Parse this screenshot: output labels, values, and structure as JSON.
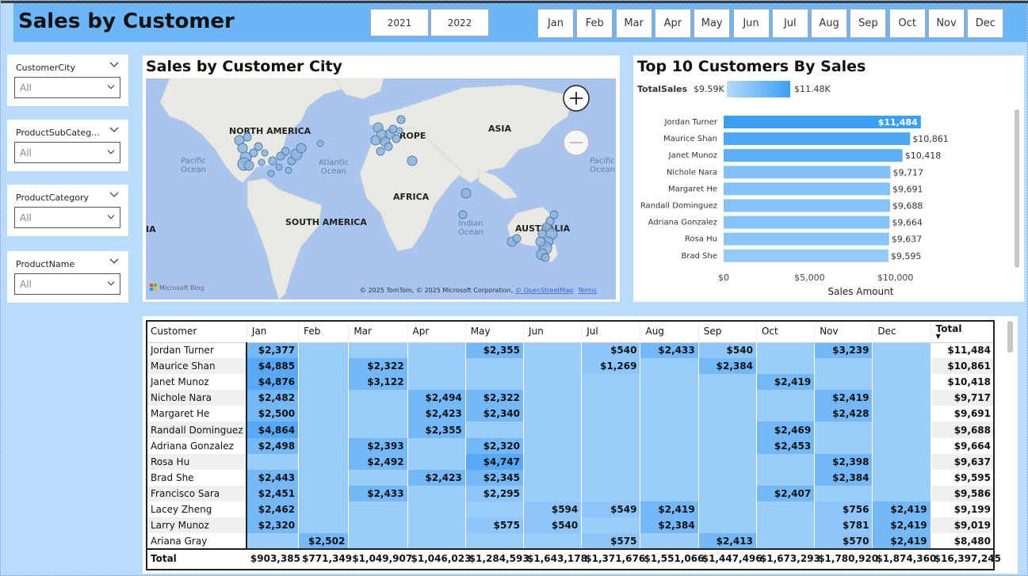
{
  "header": {
    "title": "Sales by Customer",
    "years": [
      "2021",
      "2022"
    ],
    "months": [
      "Jan",
      "Feb",
      "Mar",
      "Apr",
      "May",
      "Jun",
      "Jul",
      "Aug",
      "Sep",
      "Oct",
      "Nov",
      "Dec"
    ]
  },
  "slicers": [
    {
      "label": "CustomerCity",
      "value": "All"
    },
    {
      "label": "ProductSubCateg...",
      "value": "All"
    },
    {
      "label": "ProductCategory",
      "value": "All"
    },
    {
      "label": "ProductName",
      "value": "All"
    }
  ],
  "map": {
    "title": "Sales by Customer City",
    "labels": {
      "na": "NORTH AMERICA",
      "europe": "ROPE",
      "asia": "ASIA",
      "africa": "AFRICA",
      "sa": "SOUTH AMERICA",
      "australia": "AUSTRALIA",
      "pacific_left": "Pacific\nOcean",
      "pacific_right": "Pacific\nOcean",
      "atlantic": "Atlantic\nOcean",
      "indian": "Indian\nOcean",
      "ia": "IA"
    },
    "attribution": "© 2025 TomTom, © 2025 Microsoft Corporation,",
    "osm": "© OpenStreetMap",
    "terms": "Terms",
    "logo": "Microsoft Bing"
  },
  "bar": {
    "title": "Top 10 Customers By Sales",
    "legend_label": "TotalSales",
    "legend_min": "$9.59K",
    "legend_max": "$11.48K",
    "xlabel": "Sales Amount",
    "ticks": [
      "$0",
      "$5,000",
      "$10,000"
    ]
  },
  "chart_data": {
    "type": "bar",
    "title": "Top 10 Customers By Sales",
    "xlabel": "Sales Amount",
    "xlim": [
      0,
      12000
    ],
    "categories": [
      "Jordan Turner",
      "Maurice Shan",
      "Janet Munoz",
      "Nichole Nara",
      "Margaret He",
      "Randall Dominguez",
      "Adriana Gonzalez",
      "Rosa Hu",
      "Brad She"
    ],
    "values": [
      11484,
      10861,
      10418,
      9717,
      9691,
      9688,
      9664,
      9637,
      9595
    ],
    "labels": [
      "$11,484",
      "$10,861",
      "$10,418",
      "$9,717",
      "$9,691",
      "$9,688",
      "$9,664",
      "$9,637",
      "$9,595"
    ],
    "colors": {
      "high": "#3aa0f5",
      "low": "#93c9fb"
    }
  },
  "table": {
    "headers": [
      "Customer",
      "Jan",
      "Feb",
      "Mar",
      "Apr",
      "May",
      "Jun",
      "Jul",
      "Aug",
      "Sep",
      "Oct",
      "Nov",
      "Dec",
      "Total"
    ],
    "rows": [
      [
        "Jordan Turner",
        "$2,377",
        "",
        "",
        "",
        "$2,355",
        "",
        "$540",
        "$2,433",
        "$540",
        "",
        "$3,239",
        "",
        "$11,484"
      ],
      [
        "Maurice Shan",
        "$4,885",
        "",
        "$2,322",
        "",
        "",
        "",
        "$1,269",
        "",
        "$2,384",
        "",
        "",
        "",
        "$10,861"
      ],
      [
        "Janet Munoz",
        "$4,876",
        "",
        "$3,122",
        "",
        "",
        "",
        "",
        "",
        "",
        "$2,419",
        "",
        "",
        "$10,418"
      ],
      [
        "Nichole Nara",
        "$2,482",
        "",
        "",
        "$2,494",
        "$2,322",
        "",
        "",
        "",
        "",
        "",
        "$2,419",
        "",
        "$9,717"
      ],
      [
        "Margaret He",
        "$2,500",
        "",
        "",
        "$2,423",
        "$2,340",
        "",
        "",
        "",
        "",
        "",
        "$2,428",
        "",
        "$9,691"
      ],
      [
        "Randall Dominguez",
        "$4,864",
        "",
        "",
        "$2,355",
        "",
        "",
        "",
        "",
        "",
        "$2,469",
        "",
        "",
        "$9,688"
      ],
      [
        "Adriana Gonzalez",
        "$2,498",
        "",
        "$2,393",
        "",
        "$2,320",
        "",
        "",
        "",
        "",
        "$2,453",
        "",
        "",
        "$9,664"
      ],
      [
        "Rosa Hu",
        "",
        "",
        "$2,492",
        "",
        "$4,747",
        "",
        "",
        "",
        "",
        "",
        "$2,398",
        "",
        "$9,637"
      ],
      [
        "Brad She",
        "$2,443",
        "",
        "",
        "$2,423",
        "$2,345",
        "",
        "",
        "",
        "",
        "",
        "$2,384",
        "",
        "$9,595"
      ],
      [
        "Francisco Sara",
        "$2,451",
        "",
        "$2,433",
        "",
        "$2,295",
        "",
        "",
        "",
        "",
        "$2,407",
        "",
        "",
        "$9,586"
      ],
      [
        "Lacey Zheng",
        "$2,462",
        "",
        "",
        "",
        "",
        "$594",
        "$549",
        "$2,419",
        "",
        "",
        "$756",
        "$2,419",
        "$9,199"
      ],
      [
        "Larry Munoz",
        "$2,320",
        "",
        "",
        "",
        "$575",
        "$540",
        "",
        "$2,384",
        "",
        "",
        "$781",
        "$2,419",
        "$9,019"
      ],
      [
        "Ariana Gray",
        "",
        "$2,502",
        "",
        "",
        "",
        "",
        "$575",
        "",
        "$2,413",
        "",
        "$570",
        "$2,419",
        "$8,480"
      ]
    ],
    "total": [
      "Total",
      "$903,385",
      "$771,349",
      "$1,049,907",
      "$1,046,023",
      "$1,284,593",
      "$1,643,178",
      "$1,371,676",
      "$1,551,066",
      "$1,447,496",
      "$1,673,293",
      "$1,780,920",
      "$1,874,360",
      "$16,397,245"
    ],
    "sort_indicator": "▼",
    "colors": {
      "empty": "#9bcdfb",
      "low": "#8ec6fb",
      "high": "#57a9f5"
    }
  }
}
